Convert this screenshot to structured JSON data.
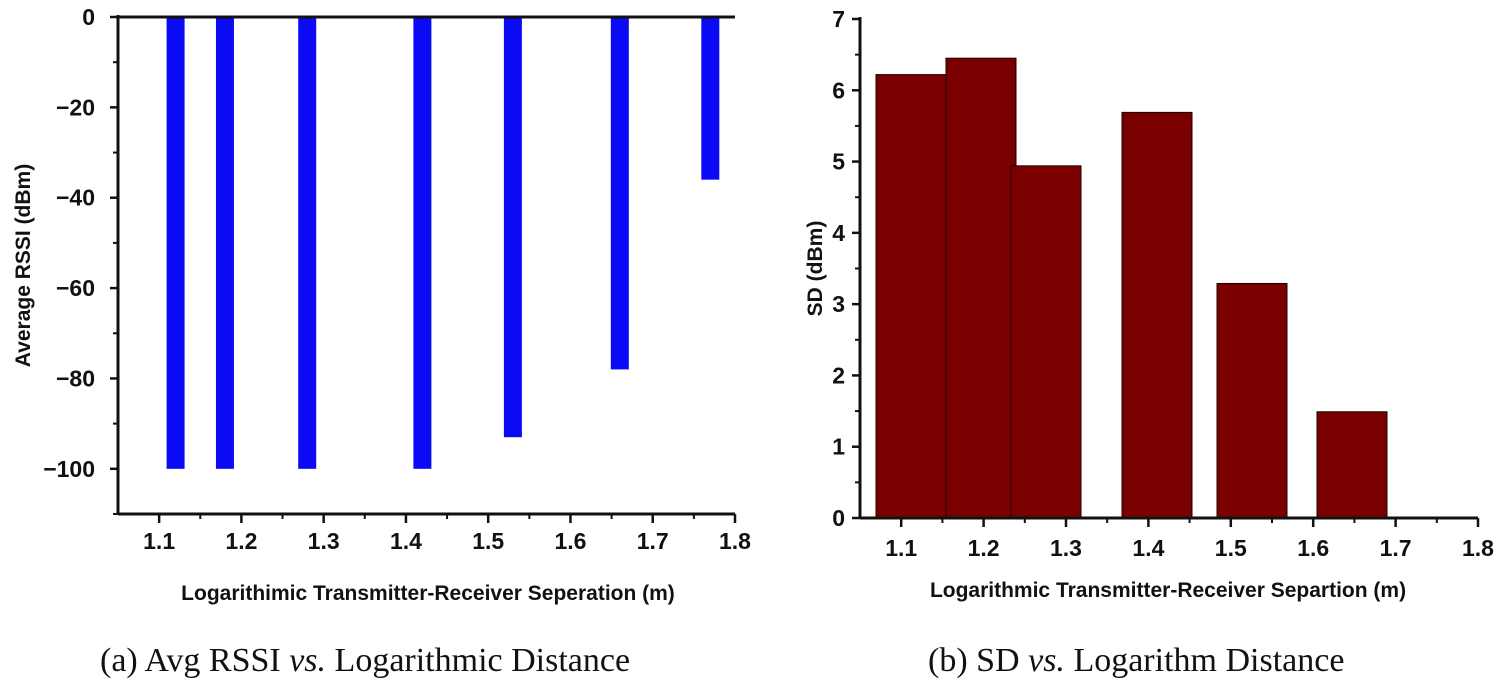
{
  "chart_data": [
    {
      "type": "bar",
      "x": [
        1.12,
        1.18,
        1.28,
        1.42,
        1.53,
        1.66,
        1.77
      ],
      "values": [
        -100,
        -100,
        -100,
        -100,
        -93,
        -78,
        -36
      ],
      "color": "#0a0af5",
      "xlabel": "Logarithimic Transmitter-Receiver Seperation (m)",
      "ylabel": "Average RSSI (dBm)",
      "xlim": [
        1.05,
        1.8
      ],
      "ylim": [
        -110,
        0
      ],
      "xticks": [
        "1.1",
        "1.2",
        "1.3",
        "1.4",
        "1.5",
        "1.6",
        "1.7",
        "1.8"
      ],
      "yticks": [
        "0",
        "−20",
        "−40",
        "−60",
        "−80",
        "−100"
      ],
      "caption": {
        "prefix": "(a) Avg RSSI ",
        "em": "vs.",
        "suffix": " Logarithmic Distance"
      }
    },
    {
      "type": "bar",
      "x": [
        1.1,
        1.18,
        1.28,
        1.42,
        1.53,
        1.65
      ],
      "values": [
        6.22,
        6.45,
        4.94,
        5.69,
        3.29,
        1.49
      ],
      "color": "#7a0000",
      "xlabel": "Logarithmic Transmitter-Receiver Separtion (m)",
      "ylabel": "SD (dBm)",
      "xlim": [
        1.05,
        1.8
      ],
      "ylim": [
        0,
        7
      ],
      "xticks": [
        "1.1",
        "1.2",
        "1.3",
        "1.4",
        "1.5",
        "1.6",
        "1.7",
        "1.8"
      ],
      "yticks": [
        "0",
        "1",
        "2",
        "3",
        "4",
        "5",
        "6",
        "7"
      ],
      "caption": {
        "prefix": "(b) SD ",
        "em": "vs.",
        "suffix": " Logarithm Distance"
      }
    }
  ]
}
